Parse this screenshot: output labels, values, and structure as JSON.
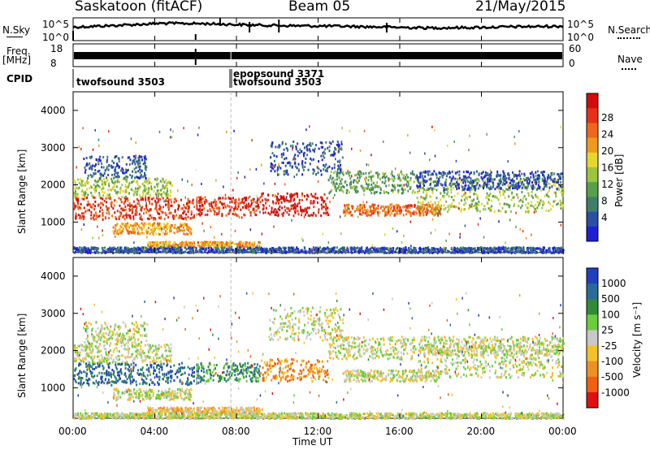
{
  "header": {
    "title": "Saskatoon (fitACF)",
    "beam": "Beam 05",
    "date": "21/May/2015"
  },
  "panel_labels": {
    "nsky": "N.Sky",
    "nsearch": "N.Search",
    "freq": "Freq.",
    "freq_unit": "[MHz]",
    "nave": "Nave",
    "cpid": "CPID"
  },
  "cpid_entries": [
    "twofsound 3503",
    "epopsound 3371",
    "twofsound 3503"
  ],
  "colors": {
    "noise_trace": "#000000",
    "power_scale": [
      "#1f1fd8",
      "#2c4fa4",
      "#3f7f6a",
      "#59a04a",
      "#9cc43c",
      "#e6d62e",
      "#f09a1c",
      "#f0661a",
      "#e83018",
      "#d40b0b"
    ],
    "velocity_scale": [
      "#2040c0",
      "#2a6a9a",
      "#2f8a3a",
      "#6acd3a",
      "#c8c8c8",
      "#f2c22a",
      "#f09020",
      "#f06010",
      "#e01010"
    ]
  },
  "chart_data": [
    {
      "type": "line",
      "panel": "noise",
      "series": [
        {
          "name": "N.Sky",
          "values": [
            3.2,
            3.6,
            4.1,
            4.0,
            3.7,
            3.5,
            3.4,
            3.2,
            3.0,
            3.1,
            3.3,
            3.4
          ]
        },
        {
          "name": "N.Search",
          "values": [
            3.0,
            3.3,
            3.8,
            3.7,
            3.4,
            3.3,
            3.2,
            3.0,
            2.9,
            3.0,
            3.2,
            3.3
          ]
        }
      ],
      "yticks_left": [
        "10^5",
        "10^0"
      ],
      "yticks_right": [
        "10^5",
        "10^0"
      ]
    },
    {
      "type": "line",
      "panel": "freq-nave",
      "series": [
        {
          "name": "Freq.",
          "values": [
            11.5,
            11.5,
            11.5,
            11.5,
            11.5,
            11.5,
            11.5,
            11.5,
            11.5,
            11.5,
            11.5,
            11.5
          ]
        }
      ],
      "yticks_left": [
        "18",
        "8"
      ],
      "yticks_right": [
        "60",
        "0"
      ]
    },
    {
      "type": "heatmap",
      "panel": "power",
      "ylabel": "Slant Range [km]",
      "yticks": [
        "4000",
        "3000",
        "2000",
        "1000"
      ],
      "xticks": [
        "00:00",
        "04:00",
        "08:00",
        "12:00",
        "16:00",
        "20:00",
        "00:00"
      ],
      "colorbar_label": "Power [dB]",
      "colorbar_ticks": [
        "28",
        "24",
        "20",
        "16",
        "12",
        "8",
        "4"
      ],
      "ylim": [
        180,
        4500
      ]
    },
    {
      "type": "heatmap",
      "panel": "velocity",
      "ylabel": "Slant Range [km]",
      "xlabel": "Time UT",
      "yticks": [
        "4000",
        "3000",
        "2000",
        "1000"
      ],
      "xticks": [
        "00:00",
        "04:00",
        "08:00",
        "12:00",
        "16:00",
        "20:00",
        "00:00"
      ],
      "colorbar_label": "Velocity [m s⁻¹]",
      "colorbar_ticks": [
        "1000",
        "500",
        "100",
        "25",
        "-25",
        "-100",
        "-500",
        "-1000"
      ],
      "ylim": [
        180,
        4500
      ]
    }
  ]
}
